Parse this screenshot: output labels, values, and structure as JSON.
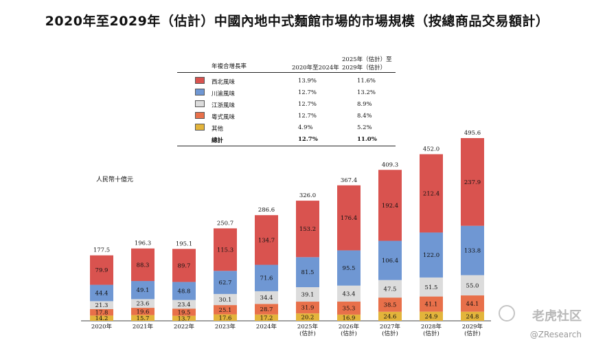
{
  "title": "2020年至2029年（估計）中國內地中式麵館市場的市場規模（按總商品交易額計）",
  "legend": {
    "header_col1": "年複合增長率",
    "header_col2": "2020年至2024年",
    "header_col3_line1": "2025年（估計）至",
    "header_col3_line2": "2029年（估計）",
    "rows": [
      {
        "name": "西北風味",
        "color": "#d9534f",
        "cagr1": "13.9%",
        "cagr2": "11.6%"
      },
      {
        "name": "川渝風味",
        "color": "#6f97d3",
        "cagr1": "12.7%",
        "cagr2": "13.2%"
      },
      {
        "name": "江浙風味",
        "color": "#dcdcdc",
        "cagr1": "12.7%",
        "cagr2": "8.9%"
      },
      {
        "name": "粵式風味",
        "color": "#e8704a",
        "cagr1": "12.7%",
        "cagr2": "8.4%"
      },
      {
        "name": "其他",
        "color": "#e3b43b",
        "cagr1": "4.9%",
        "cagr2": "5.2%"
      }
    ],
    "total": {
      "name": "總計",
      "cagr1": "12.7%",
      "cagr2": "11.0%"
    }
  },
  "unit_label": "人民幣十億元",
  "watermark": "老虎社区",
  "watermark_user": "@ZResearch",
  "chart_data": {
    "type": "bar",
    "stacked": true,
    "categories": [
      "2020年",
      "2021年",
      "2022年",
      "2023年",
      "2024年",
      "2025年\n(估計)",
      "2026年\n(估計)",
      "2027年\n(估計)",
      "2028年\n(估計)",
      "2029年\n(估計)"
    ],
    "series": [
      {
        "name": "其他",
        "color": "#e3b43b",
        "values": [
          14.2,
          15.7,
          13.7,
          17.6,
          17.2,
          20.2,
          16.9,
          24.6,
          24.9,
          24.8
        ]
      },
      {
        "name": "粵式風味",
        "color": "#e8704a",
        "values": [
          17.8,
          19.6,
          19.5,
          25.1,
          28.7,
          31.9,
          35.3,
          38.5,
          41.1,
          44.1
        ]
      },
      {
        "name": "江浙風味",
        "color": "#dcdcdc",
        "values": [
          21.3,
          23.6,
          23.4,
          30.1,
          34.4,
          39.1,
          43.4,
          47.5,
          51.5,
          55.0
        ]
      },
      {
        "name": "川渝風味",
        "color": "#6f97d3",
        "values": [
          44.4,
          49.1,
          48.8,
          62.7,
          71.6,
          81.5,
          95.5,
          106.4,
          122.0,
          133.8
        ]
      },
      {
        "name": "西北風味",
        "color": "#d9534f",
        "values": [
          79.9,
          88.3,
          89.7,
          115.3,
          134.7,
          153.2,
          176.4,
          192.4,
          212.4,
          237.9
        ]
      }
    ],
    "totals": [
      177.5,
      196.3,
      195.1,
      250.7,
      286.6,
      326.0,
      367.4,
      409.3,
      452.0,
      495.6
    ],
    "ylabel": "人民幣十億元",
    "grid": false,
    "legend_position": "top-center"
  }
}
